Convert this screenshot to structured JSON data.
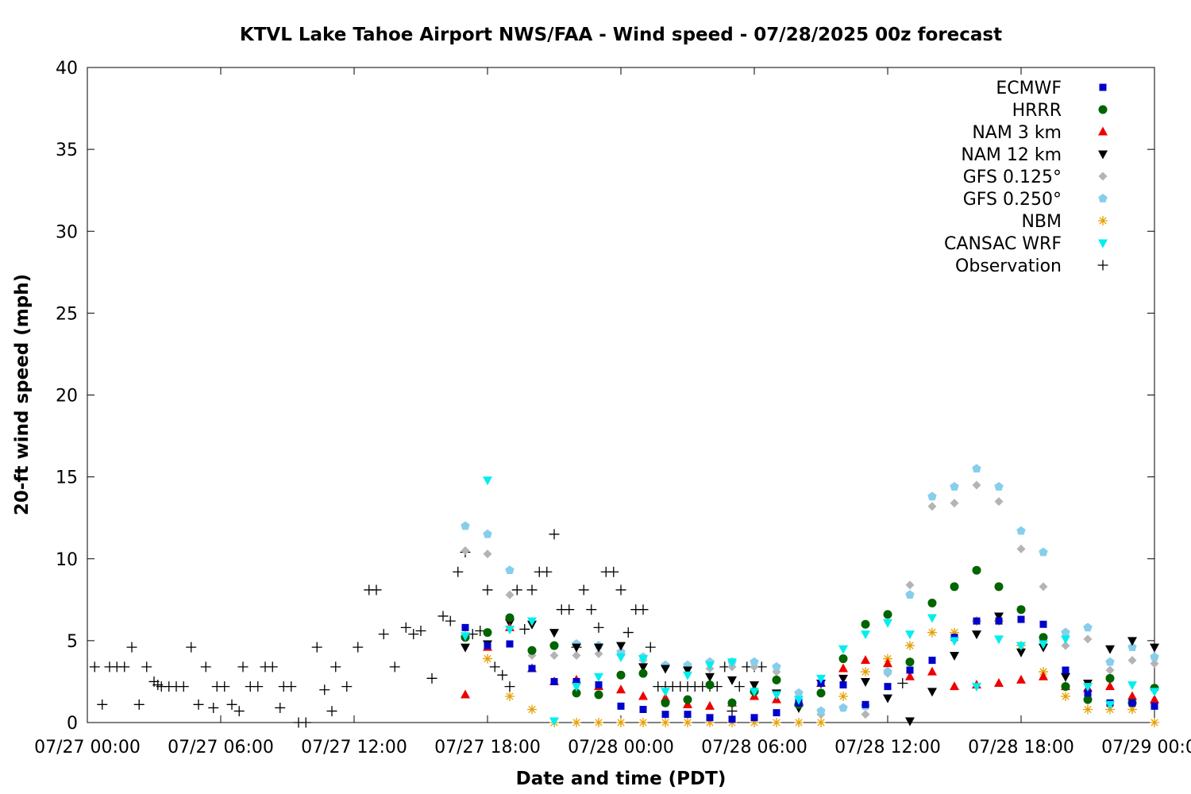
{
  "chart_data": {
    "type": "scatter",
    "title": "KTVL Lake Tahoe Airport NWS/FAA - Wind speed - 07/28/2025 00z forecast",
    "xlabel": "Date and time (PDT)",
    "ylabel": "20-ft wind speed (mph)",
    "xlim": [
      "07/27 00:00",
      "07/29 00:00"
    ],
    "ylim": [
      0,
      40
    ],
    "yticks": [
      0,
      5,
      10,
      15,
      20,
      25,
      30,
      35,
      40
    ],
    "xticks": [
      {
        "hour": 0,
        "label": "07/27 00:00"
      },
      {
        "hour": 6,
        "label": "07/27 06:00"
      },
      {
        "hour": 12,
        "label": "07/27 12:00"
      },
      {
        "hour": 18,
        "label": "07/27 18:00"
      },
      {
        "hour": 24,
        "label": "07/28 00:00"
      },
      {
        "hour": 30,
        "label": "07/28 06:00"
      },
      {
        "hour": 36,
        "label": "07/28 12:00"
      },
      {
        "hour": 42,
        "label": "07/28 18:00"
      },
      {
        "hour": 48,
        "label": "07/29 00:00"
      }
    ],
    "grid": false,
    "legend_position": "top-right",
    "forecast_hours": [
      17,
      18,
      19,
      20,
      21,
      22,
      23,
      24,
      25,
      26,
      27,
      28,
      29,
      30,
      31,
      32,
      33,
      34,
      35,
      36,
      37,
      38,
      39,
      40,
      41,
      42,
      43,
      44,
      45,
      46,
      47,
      48
    ],
    "series": [
      {
        "name": "ECMWF",
        "marker": "square",
        "color": "#0000cc",
        "values": [
          5.8,
          4.7,
          4.8,
          3.3,
          2.5,
          2.5,
          2.3,
          1.0,
          0.8,
          0.5,
          0.5,
          0.3,
          0.2,
          0.3,
          0.6,
          1.2,
          2.4,
          2.3,
          1.1,
          2.2,
          3.2,
          3.8,
          5.2,
          6.2,
          6.2,
          6.3,
          6.0,
          3.2,
          1.8,
          1.2,
          1.2,
          1.0
        ]
      },
      {
        "name": "HRRR",
        "marker": "circle",
        "color": "#006400",
        "values": [
          5.2,
          5.5,
          6.4,
          4.4,
          4.7,
          1.8,
          1.7,
          2.9,
          3.0,
          1.2,
          1.4,
          2.3,
          1.2,
          1.9,
          2.6,
          1.1,
          1.8,
          3.9,
          6.0,
          6.6,
          3.7,
          7.3,
          8.3,
          9.3,
          8.3,
          6.9,
          5.2,
          2.2,
          1.4,
          2.7,
          1.2,
          2.1
        ]
      },
      {
        "name": "NAM 3 km",
        "marker": "triangle-up",
        "color": "#ee0000",
        "values": [
          1.7,
          4.6,
          5.8,
          3.3,
          2.5,
          2.6,
          2.2,
          2.0,
          1.6,
          1.5,
          1.1,
          1.0,
          1.2,
          1.6,
          1.4,
          1.2,
          2.4,
          3.3,
          3.8,
          3.6,
          2.8,
          3.1,
          2.2,
          2.3,
          2.4,
          2.6,
          2.8,
          2.2,
          2.1,
          2.2,
          1.6,
          1.4
        ]
      },
      {
        "name": "NAM 12 km",
        "marker": "triangle-down",
        "color": "#000000",
        "values": [
          4.6,
          4.8,
          6.1,
          6.0,
          5.5,
          4.6,
          4.6,
          4.7,
          3.4,
          3.3,
          3.2,
          2.8,
          2.6,
          2.3,
          1.8,
          0.9,
          2.4,
          2.7,
          2.5,
          1.5,
          0.1,
          1.9,
          4.1,
          5.4,
          6.5,
          4.3,
          4.6,
          2.8,
          2.4,
          4.5,
          5.0,
          4.6
        ]
      },
      {
        "name": "GFS 0.125°",
        "marker": "diamond",
        "color": "#b4b4b4",
        "values": [
          10.5,
          10.3,
          7.8,
          4.1,
          4.1,
          4.1,
          4.2,
          4.1,
          3.8,
          3.4,
          3.4,
          3.3,
          3.4,
          3.4,
          3.1,
          1.4,
          0.5,
          0.9,
          0.5,
          3.0,
          8.4,
          13.2,
          13.4,
          14.5,
          13.5,
          10.6,
          8.3,
          4.7,
          5.1,
          3.2,
          3.8,
          3.6
        ]
      },
      {
        "name": "GFS 0.250°",
        "marker": "pentagon",
        "color": "#87ceeb",
        "values": [
          12.0,
          11.5,
          9.3,
          4.4,
          4.7,
          4.8,
          4.7,
          4.3,
          4.0,
          3.5,
          3.5,
          3.7,
          3.7,
          3.7,
          3.4,
          1.8,
          0.7,
          0.9,
          1.0,
          3.1,
          7.8,
          13.8,
          14.4,
          15.5,
          14.4,
          11.7,
          10.4,
          5.5,
          5.8,
          3.7,
          4.6,
          4.0
        ]
      },
      {
        "name": "NBM",
        "marker": "asterisk",
        "color": "#e69f00",
        "values": [
          5.3,
          3.9,
          1.6,
          0.8,
          0.0,
          0.0,
          0.0,
          0.0,
          0.0,
          0.0,
          0.0,
          0.0,
          0.0,
          0.0,
          0.0,
          0.0,
          0.0,
          1.6,
          3.1,
          3.9,
          4.7,
          5.5,
          5.5,
          6.2,
          6.2,
          4.7,
          3.1,
          1.6,
          0.8,
          0.8,
          0.8,
          0.0
        ]
      },
      {
        "name": "CANSAC WRF",
        "marker": "triangle-down",
        "color": "#00eeee",
        "values": [
          5.3,
          14.8,
          5.7,
          6.2,
          0.1,
          2.2,
          2.8,
          4.0,
          3.9,
          1.9,
          2.9,
          3.5,
          3.7,
          1.9,
          1.7,
          1.4,
          2.7,
          4.5,
          5.4,
          6.1,
          5.4,
          6.4,
          5.0,
          2.2,
          5.1,
          4.7,
          4.8,
          5.1,
          2.2,
          1.1,
          2.3,
          1.9
        ]
      },
      {
        "name": "Observation",
        "marker": "plus",
        "color": "#000000",
        "points": [
          [
            0.33,
            3.4
          ],
          [
            0.67,
            1.1
          ],
          [
            1.0,
            3.4
          ],
          [
            1.33,
            3.4
          ],
          [
            1.67,
            3.4
          ],
          [
            2.0,
            4.6
          ],
          [
            2.33,
            1.1
          ],
          [
            2.67,
            3.4
          ],
          [
            3.0,
            2.5
          ],
          [
            3.17,
            2.3
          ],
          [
            3.33,
            2.2
          ],
          [
            3.67,
            2.2
          ],
          [
            4.0,
            2.2
          ],
          [
            4.33,
            2.2
          ],
          [
            4.67,
            4.6
          ],
          [
            5.0,
            1.1
          ],
          [
            5.33,
            3.4
          ],
          [
            5.67,
            0.9
          ],
          [
            5.83,
            2.2
          ],
          [
            6.17,
            2.2
          ],
          [
            6.5,
            1.1
          ],
          [
            6.83,
            0.7
          ],
          [
            7.0,
            3.4
          ],
          [
            7.33,
            2.2
          ],
          [
            7.67,
            2.2
          ],
          [
            8.0,
            3.4
          ],
          [
            8.33,
            3.4
          ],
          [
            8.67,
            0.9
          ],
          [
            8.83,
            2.2
          ],
          [
            9.17,
            2.2
          ],
          [
            9.5,
            0.0
          ],
          [
            9.83,
            0.0
          ],
          [
            10.33,
            4.6
          ],
          [
            10.67,
            2.0
          ],
          [
            11.0,
            0.7
          ],
          [
            11.17,
            3.4
          ],
          [
            11.67,
            2.2
          ],
          [
            12.17,
            4.6
          ],
          [
            12.67,
            8.1
          ],
          [
            13.0,
            8.1
          ],
          [
            13.33,
            5.4
          ],
          [
            13.83,
            3.4
          ],
          [
            14.33,
            5.8
          ],
          [
            14.67,
            5.4
          ],
          [
            15.0,
            5.6
          ],
          [
            15.5,
            2.7
          ],
          [
            16.0,
            6.5
          ],
          [
            16.33,
            6.2
          ],
          [
            16.67,
            9.2
          ],
          [
            17.0,
            10.4
          ],
          [
            17.33,
            5.4
          ],
          [
            17.67,
            5.6
          ],
          [
            18.0,
            8.1
          ],
          [
            18.33,
            3.4
          ],
          [
            18.67,
            2.9
          ],
          [
            19.0,
            2.2
          ],
          [
            19.33,
            8.1
          ],
          [
            19.67,
            5.7
          ],
          [
            20.0,
            8.1
          ],
          [
            20.33,
            9.2
          ],
          [
            20.67,
            9.2
          ],
          [
            21.0,
            11.5
          ],
          [
            21.33,
            6.9
          ],
          [
            21.67,
            6.9
          ],
          [
            22.0,
            4.6
          ],
          [
            22.33,
            8.1
          ],
          [
            22.67,
            6.9
          ],
          [
            23.0,
            5.8
          ],
          [
            23.33,
            9.2
          ],
          [
            23.67,
            9.2
          ],
          [
            24.0,
            8.1
          ],
          [
            24.33,
            5.5
          ],
          [
            24.67,
            6.9
          ],
          [
            25.0,
            6.9
          ],
          [
            25.33,
            4.6
          ],
          [
            25.67,
            2.2
          ],
          [
            26.0,
            2.2
          ],
          [
            26.33,
            2.2
          ],
          [
            26.67,
            2.2
          ],
          [
            27.0,
            2.2
          ],
          [
            27.33,
            2.2
          ],
          [
            27.67,
            2.2
          ],
          [
            28.0,
            2.2
          ],
          [
            28.33,
            2.2
          ],
          [
            28.67,
            3.4
          ],
          [
            29.0,
            0.7
          ],
          [
            29.33,
            2.2
          ],
          [
            29.67,
            3.4
          ],
          [
            30.0,
            3.4
          ],
          [
            30.33,
            3.4
          ],
          [
            36.67,
            2.4
          ]
        ]
      }
    ]
  }
}
